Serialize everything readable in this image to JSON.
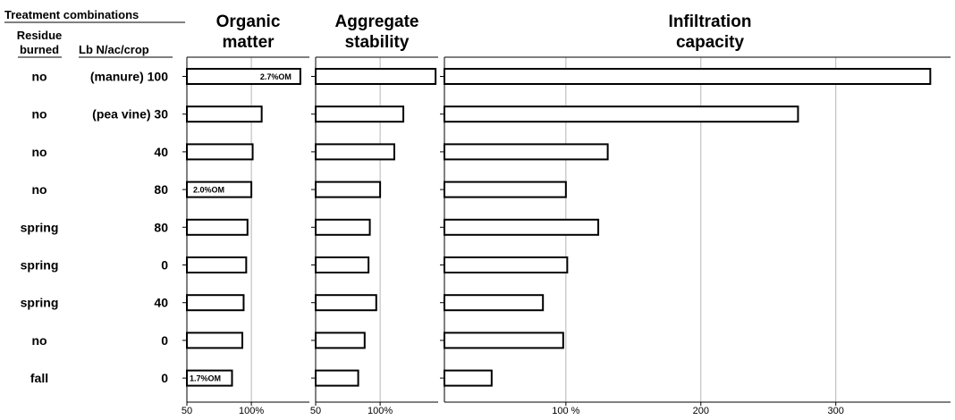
{
  "header": {
    "treatment": "Treatment combinations",
    "residue_line1": "Residue",
    "residue_line2": "burned",
    "n_rate": "Lb N/ac/crop"
  },
  "rows": [
    {
      "residue": "no",
      "nlabel": "(manure) 100"
    },
    {
      "residue": "no",
      "nlabel": "(pea vine) 30"
    },
    {
      "residue": "no",
      "nlabel": "40"
    },
    {
      "residue": "no",
      "nlabel": "80"
    },
    {
      "residue": "spring",
      "nlabel": "80"
    },
    {
      "residue": "spring",
      "nlabel": "0"
    },
    {
      "residue": "spring",
      "nlabel": "40"
    },
    {
      "residue": "no",
      "nlabel": "0"
    },
    {
      "residue": "fall",
      "nlabel": "0"
    }
  ],
  "chart_data": [
    {
      "type": "bar",
      "title_line1": "Organic",
      "title_line2": "matter",
      "xlim": [
        50,
        145
      ],
      "ticks": [
        {
          "v": 50,
          "label": "50"
        },
        {
          "v": 100,
          "label": "100%"
        }
      ],
      "gridlines": [
        100
      ],
      "values": [
        138,
        108,
        101,
        100,
        97,
        96,
        94,
        93,
        85
      ],
      "annotations": [
        {
          "row": 0,
          "text": "2.7%OM"
        },
        {
          "row": 3,
          "text": "2.0%OM"
        },
        {
          "row": 8,
          "text": "1.7%OM"
        }
      ]
    },
    {
      "type": "bar",
      "title_line1": "Aggregate",
      "title_line2": "stability",
      "xlim": [
        50,
        145
      ],
      "ticks": [
        {
          "v": 50,
          "label": "50"
        },
        {
          "v": 100,
          "label": "100%"
        }
      ],
      "gridlines": [
        100
      ],
      "values": [
        143,
        118,
        111,
        100,
        92,
        91,
        97,
        88,
        83
      ],
      "annotations": []
    },
    {
      "type": "bar",
      "title_line1": "Infiltration",
      "title_line2": "capacity",
      "xlim": [
        10,
        385
      ],
      "ticks": [
        {
          "v": 100,
          "label": "100 %"
        },
        {
          "v": 200,
          "label": "200"
        },
        {
          "v": 300,
          "label": "300"
        }
      ],
      "gridlines": [
        100,
        200,
        300
      ],
      "values": [
        370,
        272,
        131,
        100,
        124,
        101,
        83,
        98,
        45
      ],
      "annotations": []
    }
  ]
}
